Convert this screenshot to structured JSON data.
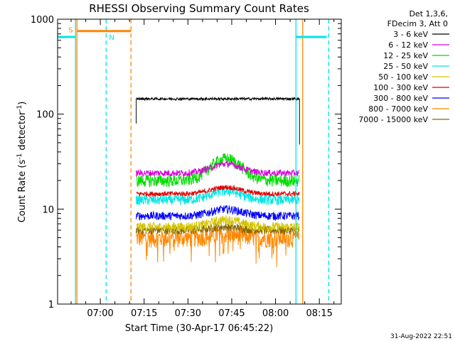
{
  "chart_data": {
    "type": "line",
    "title": "RHESSI Observing Summary Count Rates",
    "xlabel": "Start Time (30-Apr-17 06:45:22)",
    "ylabel_main": "Count Rate (s",
    "ylabel_sup1": "-1",
    "ylabel_mid": " detector",
    "ylabel_sup2": "-1",
    "ylabel_end": ")",
    "yscale": "log",
    "ylim": [
      1,
      1000
    ],
    "xlim_min": [
      45.37,
      142.5
    ],
    "x_ticks": [
      {
        "label": "07:00",
        "min": 60
      },
      {
        "label": "07:15",
        "min": 75
      },
      {
        "label": "07:30",
        "min": 90
      },
      {
        "label": "07:45",
        "min": 105
      },
      {
        "label": "08:00",
        "min": 120
      },
      {
        "label": "08:15",
        "min": 135
      }
    ],
    "y_ticks": [
      {
        "label": "1",
        "value": 1
      },
      {
        "label": "10",
        "value": 10
      },
      {
        "label": "100",
        "value": 100
      },
      {
        "label": "1000",
        "value": 1000
      }
    ],
    "legend_header": [
      "Det 1,3,6,",
      "FDecim 3, Att 0"
    ],
    "series": [
      {
        "name": "3 - 6 keV",
        "color": "#000000",
        "base": 145,
        "bump": 0,
        "noise": 0.03
      },
      {
        "name": "6 - 12 keV",
        "color": "#dd00dd",
        "base": 24,
        "bump": 6,
        "noise": 0.08
      },
      {
        "name": "12 - 25 keV",
        "color": "#00dd00",
        "base": 20,
        "bump": 14,
        "noise": 0.15
      },
      {
        "name": "25 - 50 keV",
        "color": "#00e5e5",
        "base": 12.5,
        "bump": 3,
        "noise": 0.12
      },
      {
        "name": "50 - 100 keV",
        "color": "#d4c400",
        "base": 6.5,
        "bump": 1.2,
        "noise": 0.12
      },
      {
        "name": "100 - 300 keV",
        "color": "#e00000",
        "base": 14.5,
        "bump": 2.5,
        "noise": 0.06
      },
      {
        "name": "300 - 800 keV",
        "color": "#0000ff",
        "base": 8.5,
        "bump": 1.5,
        "noise": 0.1
      },
      {
        "name": "800 - 7000 keV",
        "color": "#ff8800",
        "base": 5.0,
        "bump": 0.5,
        "noise": 0.22
      },
      {
        "name": "7000 - 15000 keV",
        "color": "#886600",
        "base": 6.0,
        "bump": 0.5,
        "noise": 0.1
      }
    ],
    "data_window_min": [
      72.3,
      128.2
    ],
    "flags": {
      "S": {
        "label": "S",
        "color": "#ff8800",
        "start_min": 52.0,
        "end_min": 70.5,
        "value": 750
      },
      "N": {
        "label": "N",
        "color": "#00e5e5",
        "segments": [
          [
            45.37,
            51.5
          ],
          [
            127.0,
            137.5
          ]
        ],
        "value": 650
      }
    },
    "vlines": [
      {
        "min": 51.5,
        "color": "#00e5e5",
        "style": "solid"
      },
      {
        "min": 52.0,
        "color": "#ff8800",
        "style": "solid"
      },
      {
        "min": 62.0,
        "color": "#00e5e5",
        "style": "dashed"
      },
      {
        "min": 70.5,
        "color": "#ff8800",
        "style": "dashed"
      },
      {
        "min": 127.0,
        "color": "#00e5e5",
        "style": "solid"
      },
      {
        "min": 129.3,
        "color": "#ff8800",
        "style": "solid"
      },
      {
        "min": 138.2,
        "color": "#00e5e5",
        "style": "dashed"
      }
    ],
    "footer_date": "31-Aug-2022 22:51"
  }
}
